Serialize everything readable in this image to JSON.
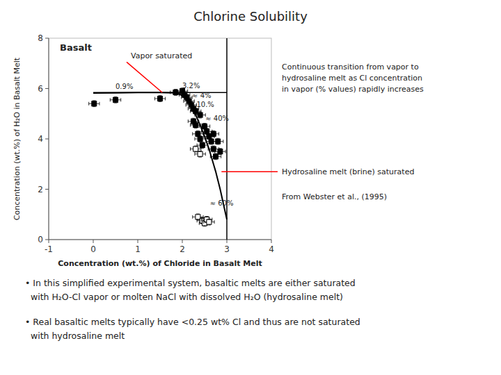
{
  "chart_data": {
    "type": "scatter",
    "title": "Chlorine Solubility",
    "xlabel": "Concentration (wt.%) of Chloride in Basalt Melt",
    "ylabel": "Concentration (wt.%) of H₂O in Basalt Melt",
    "xlim": [
      -1,
      4
    ],
    "ylim": [
      0,
      8
    ],
    "xticks": [
      -1,
      0,
      1,
      2,
      3,
      4
    ],
    "yticks": [
      0,
      2,
      4,
      6,
      8
    ],
    "grid": false,
    "inset_label": "Basalt",
    "series": [
      {
        "type": "line",
        "color": "black",
        "x": [
          0.0,
          0.5,
          1.0,
          1.5,
          1.8,
          1.9,
          2.0,
          2.1,
          2.2,
          2.3,
          2.4,
          2.5,
          2.6,
          2.7,
          2.75,
          2.8,
          2.85,
          2.9,
          2.95,
          3.0
        ],
        "values": [
          5.82,
          5.83,
          5.84,
          5.84,
          5.83,
          5.8,
          5.72,
          5.55,
          5.3,
          4.95,
          4.55,
          4.1,
          3.6,
          3.0,
          2.7,
          2.35,
          2.0,
          1.6,
          1.2,
          0.8
        ]
      },
      {
        "type": "line",
        "color": "black",
        "x": [
          0,
          3.0
        ],
        "values": [
          5.84,
          5.84
        ]
      },
      {
        "type": "line",
        "color": "black",
        "x": [
          3.0,
          3.0
        ],
        "values": [
          0,
          8
        ]
      },
      {
        "type": "scatter",
        "color": "black",
        "marker": "square",
        "error": 0.12,
        "x": [
          0.02,
          0.5,
          1.5,
          1.85,
          2.0,
          2.05,
          2.1,
          2.15,
          2.2,
          2.25,
          2.3,
          2.4,
          2.5,
          2.55,
          2.6,
          2.65,
          2.7,
          2.75,
          2.4,
          2.45,
          2.35,
          2.3,
          2.25,
          2.7,
          2.8,
          2.85
        ],
        "values": [
          5.4,
          5.55,
          5.6,
          5.85,
          5.9,
          5.75,
          5.65,
          5.5,
          5.35,
          5.2,
          5.1,
          4.95,
          4.5,
          4.3,
          4.1,
          3.9,
          3.6,
          3.3,
          4.0,
          3.75,
          4.2,
          4.55,
          4.7,
          4.2,
          3.9,
          3.5
        ]
      },
      {
        "type": "scatter",
        "color": "black",
        "marker": "open-square",
        "error": 0.12,
        "x": [
          2.3,
          2.4,
          2.35,
          2.45,
          2.5,
          2.55,
          2.6
        ],
        "values": [
          3.6,
          3.4,
          0.9,
          0.75,
          0.65,
          0.8,
          0.7
        ]
      }
    ],
    "annotations": [
      {
        "text": "0.9%",
        "x": 0.5,
        "y": 6.0
      },
      {
        "text": "3.2%",
        "x": 2.0,
        "y": 6.02
      },
      {
        "text": "≈ 4%",
        "x": 2.22,
        "y": 5.62
      },
      {
        "text": "10.%",
        "x": 2.32,
        "y": 5.28
      },
      {
        "text": "≈ 40%",
        "x": 2.52,
        "y": 4.72
      },
      {
        "text": "≈ 60%",
        "x": 2.62,
        "y": 1.35
      }
    ],
    "callouts": [
      {
        "text": "Vapor saturated",
        "x": 0.75,
        "y": 7.05,
        "x2": 1.55,
        "y2": 5.84,
        "color": "red"
      },
      {
        "text": "Hydrosaline melt (brine) saturated",
        "x": 2.88,
        "y": 2.7,
        "color": "red"
      }
    ],
    "side_notes": [
      "Continuous transition from vapor to\nhydrosaline melt as Cl concentration\nin vapor (% values) rapidly increases",
      "From Webster et al., (1995)"
    ],
    "notes": [
      "• In this simplified experimental system, basaltic melts are either saturated",
      "  with H₂O-Cl vapor or molten NaCl with dissolved H₂O (hydrosaline melt)",
      "• Real basaltic melts typically have <0.25 wt% Cl and thus are not saturated",
      "  with hydrosaline melt"
    ]
  }
}
